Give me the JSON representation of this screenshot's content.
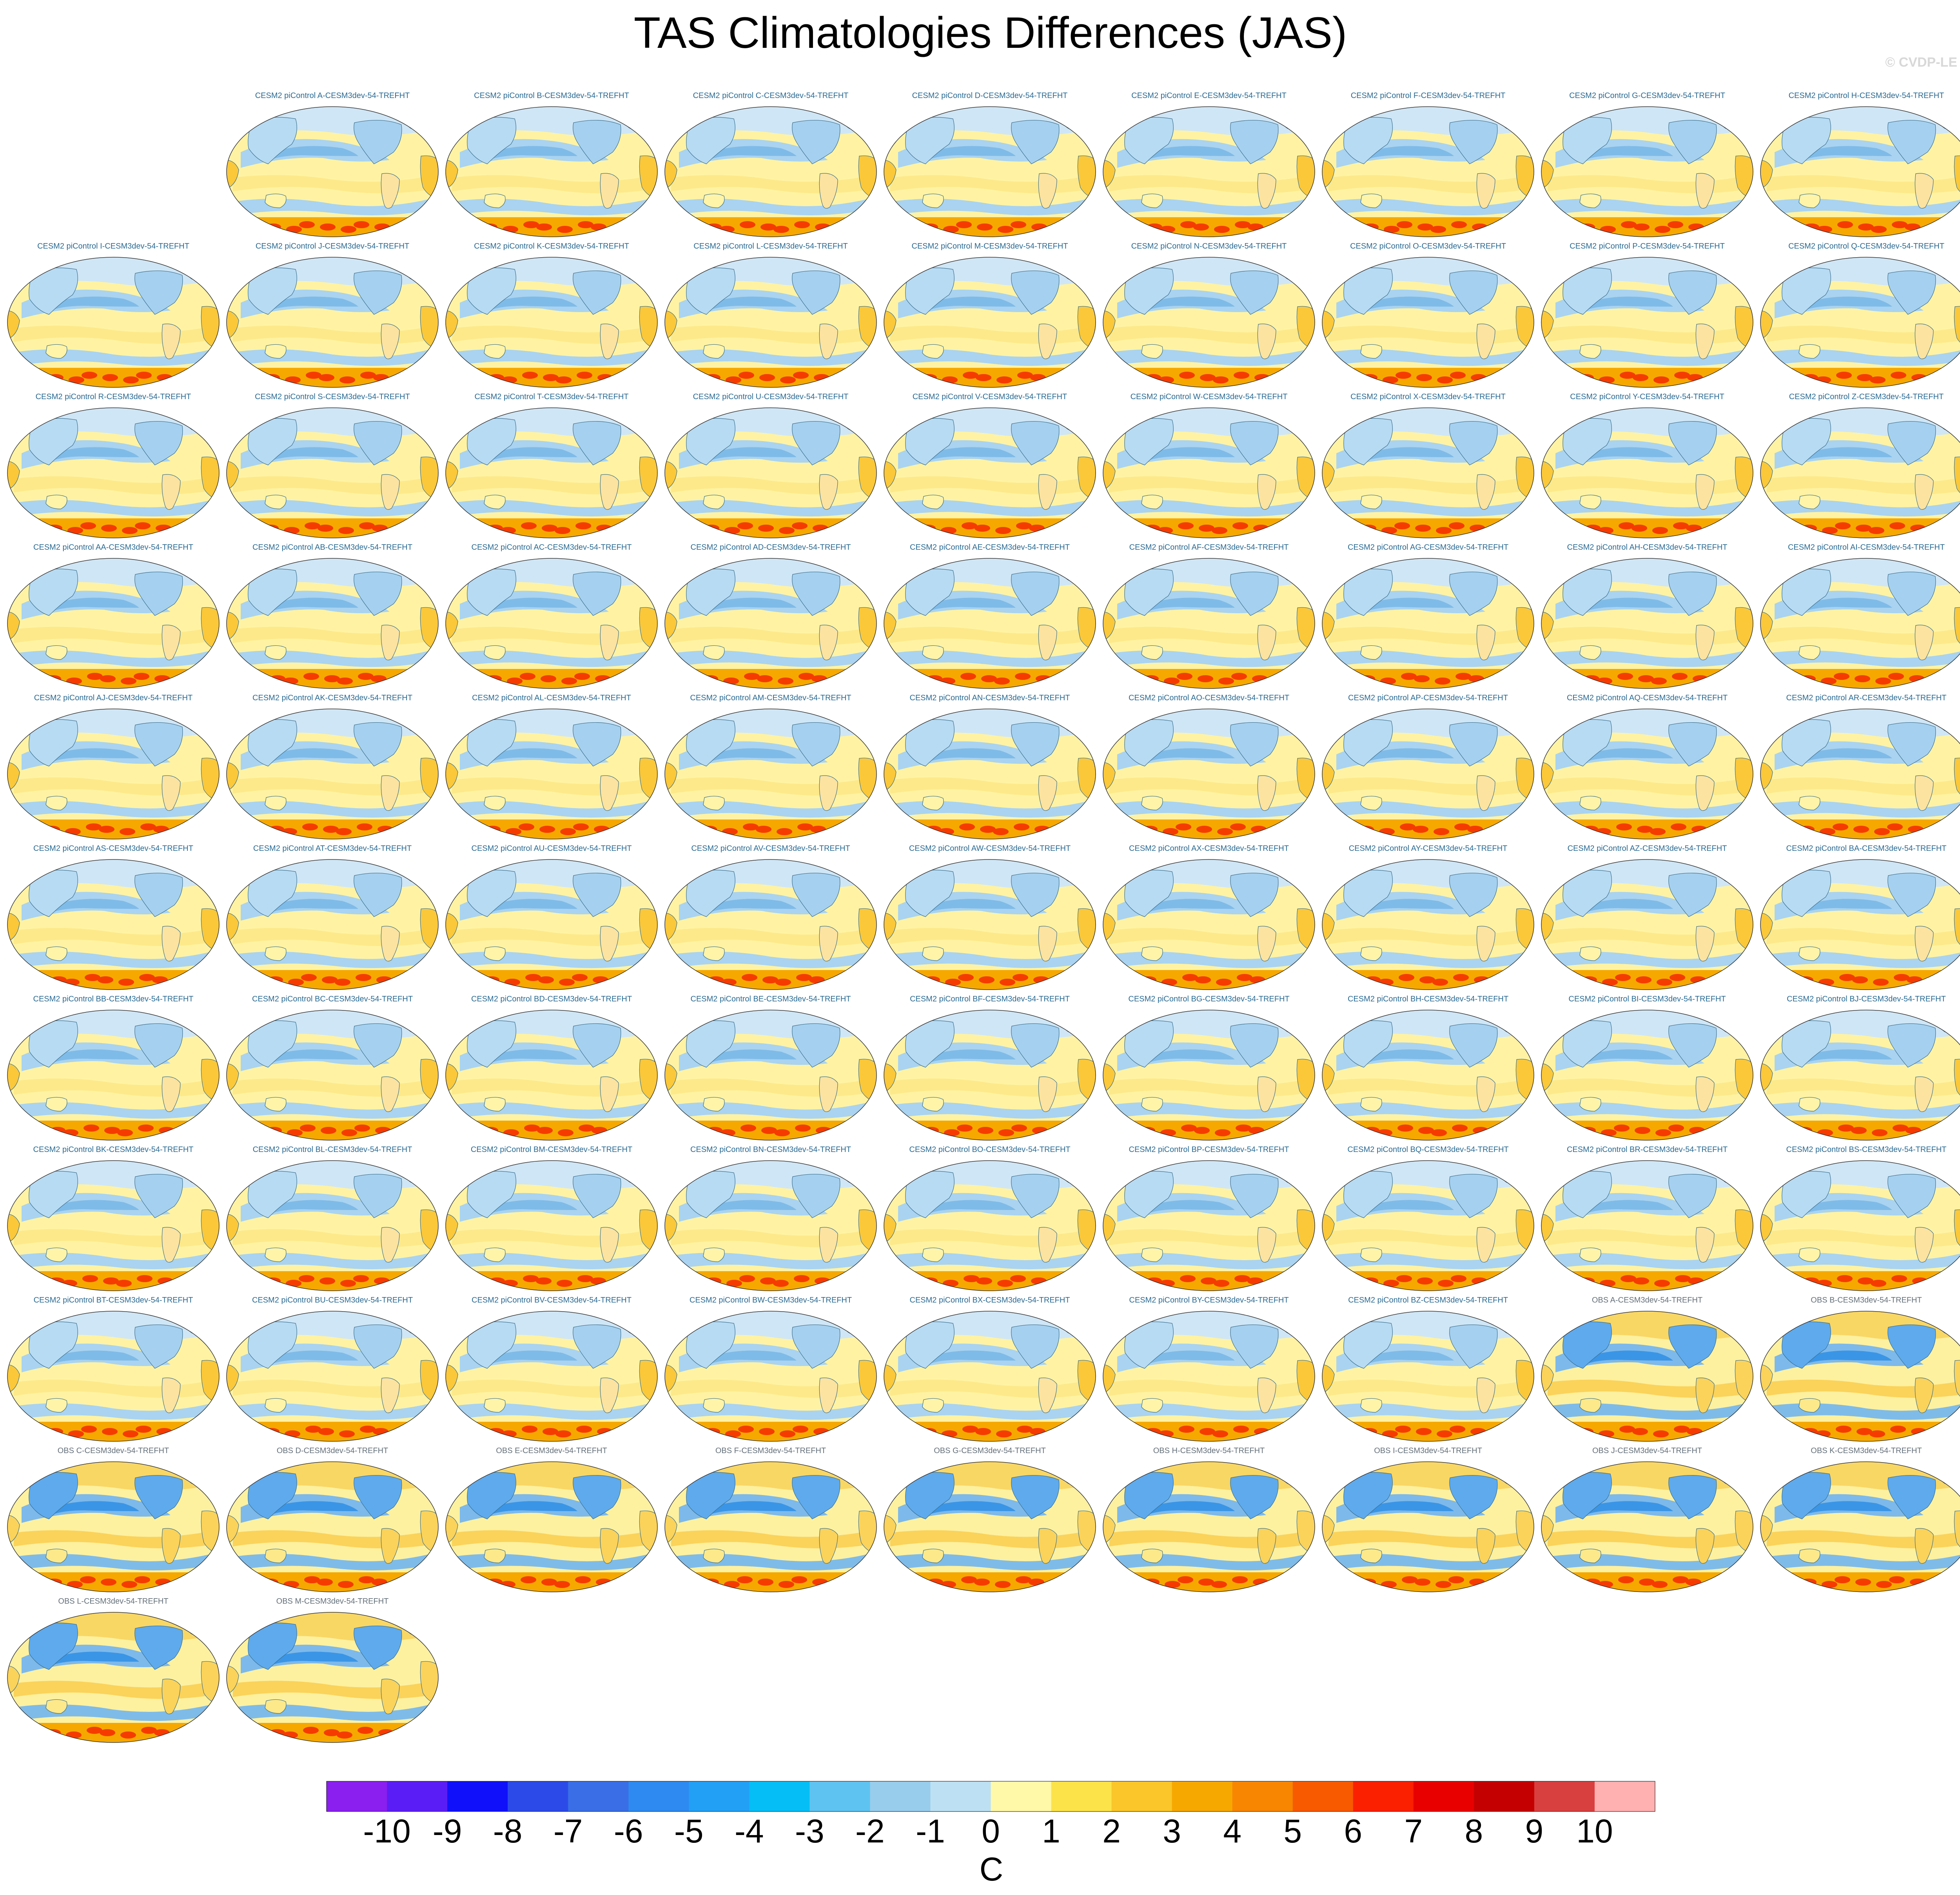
{
  "title": "TAS Climatologies Differences (JAS)",
  "watermark": "© CVDP-LE",
  "chart_data": {
    "type": "heatmap",
    "projection": "Robinson (global, Pacific-centred)",
    "panel_titles": [
      "CESM2 piControl A-CESM3dev-54-TREFHT",
      "CESM2 piControl B-CESM3dev-54-TREFHT",
      "CESM2 piControl C-CESM3dev-54-TREFHT",
      "CESM2 piControl D-CESM3dev-54-TREFHT",
      "CESM2 piControl E-CESM3dev-54-TREFHT",
      "CESM2 piControl F-CESM3dev-54-TREFHT",
      "CESM2 piControl G-CESM3dev-54-TREFHT",
      "CESM2 piControl H-CESM3dev-54-TREFHT",
      "CESM2 piControl I-CESM3dev-54-TREFHT",
      "CESM2 piControl J-CESM3dev-54-TREFHT",
      "CESM2 piControl K-CESM3dev-54-TREFHT",
      "CESM2 piControl L-CESM3dev-54-TREFHT",
      "CESM2 piControl M-CESM3dev-54-TREFHT",
      "CESM2 piControl N-CESM3dev-54-TREFHT",
      "CESM2 piControl O-CESM3dev-54-TREFHT",
      "CESM2 piControl P-CESM3dev-54-TREFHT",
      "CESM2 piControl Q-CESM3dev-54-TREFHT",
      "CESM2 piControl R-CESM3dev-54-TREFHT",
      "CESM2 piControl S-CESM3dev-54-TREFHT",
      "CESM2 piControl T-CESM3dev-54-TREFHT",
      "CESM2 piControl U-CESM3dev-54-TREFHT",
      "CESM2 piControl V-CESM3dev-54-TREFHT",
      "CESM2 piControl W-CESM3dev-54-TREFHT",
      "CESM2 piControl X-CESM3dev-54-TREFHT",
      "CESM2 piControl Y-CESM3dev-54-TREFHT",
      "CESM2 piControl Z-CESM3dev-54-TREFHT",
      "CESM2 piControl AA-CESM3dev-54-TREFHT",
      "CESM2 piControl AB-CESM3dev-54-TREFHT",
      "CESM2 piControl AC-CESM3dev-54-TREFHT",
      "CESM2 piControl AD-CESM3dev-54-TREFHT",
      "CESM2 piControl AE-CESM3dev-54-TREFHT",
      "CESM2 piControl AF-CESM3dev-54-TREFHT",
      "CESM2 piControl AG-CESM3dev-54-TREFHT",
      "CESM2 piControl AH-CESM3dev-54-TREFHT",
      "CESM2 piControl AI-CESM3dev-54-TREFHT",
      "CESM2 piControl AJ-CESM3dev-54-TREFHT",
      "CESM2 piControl AK-CESM3dev-54-TREFHT",
      "CESM2 piControl AL-CESM3dev-54-TREFHT",
      "CESM2 piControl AM-CESM3dev-54-TREFHT",
      "CESM2 piControl AN-CESM3dev-54-TREFHT",
      "CESM2 piControl AO-CESM3dev-54-TREFHT",
      "CESM2 piControl AP-CESM3dev-54-TREFHT",
      "CESM2 piControl AQ-CESM3dev-54-TREFHT",
      "CESM2 piControl AR-CESM3dev-54-TREFHT",
      "CESM2 piControl AS-CESM3dev-54-TREFHT",
      "CESM2 piControl AT-CESM3dev-54-TREFHT",
      "CESM2 piControl AU-CESM3dev-54-TREFHT",
      "CESM2 piControl AV-CESM3dev-54-TREFHT",
      "CESM2 piControl AW-CESM3dev-54-TREFHT",
      "CESM2 piControl AX-CESM3dev-54-TREFHT",
      "CESM2 piControl AY-CESM3dev-54-TREFHT",
      "CESM2 piControl AZ-CESM3dev-54-TREFHT",
      "CESM2 piControl BA-CESM3dev-54-TREFHT",
      "CESM2 piControl BB-CESM3dev-54-TREFHT",
      "CESM2 piControl BC-CESM3dev-54-TREFHT",
      "CESM2 piControl BD-CESM3dev-54-TREFHT",
      "CESM2 piControl BE-CESM3dev-54-TREFHT",
      "CESM2 piControl BF-CESM3dev-54-TREFHT",
      "CESM2 piControl BG-CESM3dev-54-TREFHT",
      "CESM2 piControl BH-CESM3dev-54-TREFHT",
      "CESM2 piControl BI-CESM3dev-54-TREFHT",
      "CESM2 piControl BJ-CESM3dev-54-TREFHT",
      "CESM2 piControl BK-CESM3dev-54-TREFHT",
      "CESM2 piControl BL-CESM3dev-54-TREFHT",
      "CESM2 piControl BM-CESM3dev-54-TREFHT",
      "CESM2 piControl BN-CESM3dev-54-TREFHT",
      "CESM2 piControl BO-CESM3dev-54-TREFHT",
      "CESM2 piControl BP-CESM3dev-54-TREFHT",
      "CESM2 piControl BQ-CESM3dev-54-TREFHT",
      "CESM2 piControl BR-CESM3dev-54-TREFHT",
      "CESM2 piControl BS-CESM3dev-54-TREFHT",
      "CESM2 piControl BT-CESM3dev-54-TREFHT",
      "CESM2 piControl BU-CESM3dev-54-TREFHT",
      "CESM2 piControl BV-CESM3dev-54-TREFHT",
      "CESM2 piControl BW-CESM3dev-54-TREFHT",
      "CESM2 piControl BX-CESM3dev-54-TREFHT",
      "CESM2 piControl BY-CESM3dev-54-TREFHT",
      "CESM2 piControl BZ-CESM3dev-54-TREFHT",
      "OBS A-CESM3dev-54-TREFHT",
      "OBS B-CESM3dev-54-TREFHT",
      "OBS C-CESM3dev-54-TREFHT",
      "OBS D-CESM3dev-54-TREFHT",
      "OBS E-CESM3dev-54-TREFHT",
      "OBS F-CESM3dev-54-TREFHT",
      "OBS G-CESM3dev-54-TREFHT",
      "OBS H-CESM3dev-54-TREFHT",
      "OBS I-CESM3dev-54-TREFHT",
      "OBS J-CESM3dev-54-TREFHT",
      "OBS K-CESM3dev-54-TREFHT",
      "OBS L-CESM3dev-54-TREFHT",
      "OBS M-CESM3dev-54-TREFHT"
    ],
    "grid": {
      "columns": 9,
      "first_row_start_column": 1,
      "last_row_start_column": 3.5
    },
    "colorbar": {
      "labels": [
        "-10",
        "-9",
        "-8",
        "-7",
        "-6",
        "-5",
        "-4",
        "-3",
        "-2",
        "-1",
        "0",
        "1",
        "2",
        "3",
        "4",
        "5",
        "6",
        "7",
        "8",
        "9",
        "10"
      ],
      "units": "C",
      "colors": [
        "#8a1ff0",
        "#5b1df5",
        "#1010fa",
        "#2c4ae8",
        "#3a6ee6",
        "#2e8af0",
        "#22a0f5",
        "#05bef5",
        "#5ec3f0",
        "#98cdec",
        "#bde0f3",
        "#fff9a8",
        "#fce34a",
        "#fac62a",
        "#f6a800",
        "#f88600",
        "#f85a00",
        "#fa2000",
        "#e80000",
        "#c40000",
        "#d84040",
        "#ffb0b0"
      ],
      "colors_note_removed": null
    },
    "map_colors": {
      "ocean_model": "#fff3a3",
      "cool_model": "#a9d3f0",
      "cool_model_deep": "#7fbbe8",
      "warm_model": "#fbd35a",
      "warm_strong": "#f6a800",
      "hot": "#f53b00",
      "coast": "#3a6f8e"
    }
  }
}
